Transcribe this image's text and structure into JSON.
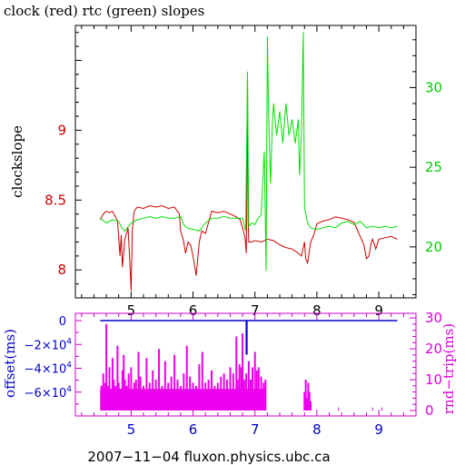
{
  "chart_data": [
    {
      "type": "line",
      "title": "clock (red) rtc (green) slopes",
      "ylabel": "clockslope",
      "x_ticks": [
        5,
        6,
        7,
        8,
        9
      ],
      "xlim": [
        4.1,
        9.6
      ],
      "ylim": [
        7.8,
        9.75
      ],
      "y_ticks": [
        8,
        8.5,
        9
      ],
      "y_right_ticks": [
        20,
        25,
        30
      ],
      "y_right_lim": [
        16.8,
        33.9
      ],
      "colors": {
        "clock": "#cc0000",
        "rtc": "#00e000",
        "axis": "#000000"
      },
      "series": [
        {
          "name": "clock",
          "axis": "left",
          "x": [
            4.5,
            4.55,
            4.6,
            4.65,
            4.7,
            4.78,
            4.82,
            4.84,
            4.86,
            4.9,
            4.95,
            4.98,
            5.0,
            5.02,
            5.05,
            5.1,
            5.2,
            5.3,
            5.4,
            5.5,
            5.6,
            5.7,
            5.78,
            5.8,
            5.84,
            5.88,
            5.92,
            5.96,
            6.0,
            6.05,
            6.1,
            6.14,
            6.2,
            6.3,
            6.4,
            6.5,
            6.6,
            6.7,
            6.76,
            6.8,
            6.84,
            6.86,
            6.88,
            6.89,
            6.9,
            6.95,
            7.0,
            7.1,
            7.2,
            7.3,
            7.4,
            7.5,
            7.6,
            7.7,
            7.75,
            7.8,
            7.82,
            7.85,
            7.9,
            7.95,
            8.0,
            8.1,
            8.2,
            8.3,
            8.4,
            8.5,
            8.6,
            8.7,
            8.76,
            8.8,
            8.84,
            8.88,
            8.9,
            8.95,
            9.0,
            9.1,
            9.2,
            9.3
          ],
          "values": [
            8.36,
            8.4,
            8.42,
            8.41,
            8.42,
            8.35,
            8.1,
            8.25,
            8.02,
            8.22,
            8.3,
            8.05,
            7.85,
            8.28,
            8.42,
            8.45,
            8.44,
            8.46,
            8.45,
            8.46,
            8.44,
            8.45,
            8.4,
            8.28,
            8.22,
            8.12,
            8.2,
            8.18,
            8.1,
            7.96,
            8.2,
            8.28,
            8.26,
            8.42,
            8.41,
            8.42,
            8.4,
            8.38,
            8.36,
            8.3,
            8.23,
            8.12,
            9.38,
            8.35,
            8.2,
            8.2,
            8.21,
            8.2,
            8.22,
            8.21,
            8.18,
            8.16,
            8.15,
            8.12,
            8.1,
            8.2,
            8.08,
            8.05,
            8.2,
            8.25,
            8.33,
            8.35,
            8.36,
            8.38,
            8.37,
            8.36,
            8.34,
            8.24,
            8.18,
            8.08,
            8.1,
            8.2,
            8.22,
            8.15,
            8.22,
            8.23,
            8.24,
            8.22
          ]
        },
        {
          "name": "rtc",
          "axis": "right",
          "x": [
            4.5,
            4.6,
            4.7,
            4.8,
            4.85,
            4.9,
            5.0,
            5.1,
            5.2,
            5.3,
            5.4,
            5.5,
            5.6,
            5.7,
            5.8,
            5.85,
            5.9,
            6.0,
            6.1,
            6.2,
            6.3,
            6.4,
            6.5,
            6.6,
            6.7,
            6.8,
            6.85,
            6.88,
            6.9,
            6.95,
            7.0,
            7.05,
            7.1,
            7.15,
            7.18,
            7.2,
            7.22,
            7.25,
            7.28,
            7.3,
            7.35,
            7.4,
            7.45,
            7.5,
            7.55,
            7.6,
            7.65,
            7.7,
            7.72,
            7.75,
            7.78,
            7.8,
            7.85,
            7.9,
            8.0,
            8.1,
            8.2,
            8.3,
            8.4,
            8.5,
            8.6,
            8.7,
            8.8,
            8.9,
            9.0,
            9.1,
            9.2,
            9.3
          ],
          "values": [
            21.8,
            21.5,
            21.7,
            21.6,
            21.2,
            21.0,
            21.5,
            21.7,
            21.8,
            21.9,
            21.8,
            21.9,
            21.8,
            21.8,
            21.9,
            21.4,
            21.2,
            21.1,
            21.0,
            21.5,
            21.8,
            21.8,
            21.9,
            21.8,
            21.8,
            21.8,
            21.0,
            31.0,
            21.3,
            21.5,
            21.4,
            21.8,
            22.0,
            26.0,
            18.5,
            33.2,
            28.5,
            24.0,
            27.5,
            29.0,
            27.0,
            28.5,
            26.5,
            29.0,
            27.0,
            28.0,
            26.5,
            28.0,
            24.5,
            27.0,
            33.5,
            22.5,
            21.5,
            21.2,
            21.1,
            21.2,
            21.3,
            21.2,
            21.5,
            21.6,
            21.4,
            21.6,
            21.2,
            21.3,
            21.2,
            21.3,
            21.2,
            21.3
          ]
        }
      ]
    },
    {
      "type": "line",
      "ylabel": "offset(ms)",
      "y2label": "rnd−trip(ms)",
      "xlabel": "2007−11−04 fluxon.physics.ubc.ca",
      "x_ticks": [
        5,
        6,
        7,
        8,
        9
      ],
      "xlim": [
        4.1,
        9.6
      ],
      "ylim": [
        -80000,
        0
      ],
      "y_ticks": [
        {
          "value": 0,
          "label": "0"
        },
        {
          "value": -20000,
          "label": "−2×10",
          "exp": "4"
        },
        {
          "value": -40000,
          "label": "−4×10",
          "exp": "4"
        },
        {
          "value": -60000,
          "label": "−6×10",
          "exp": "4"
        }
      ],
      "y_right_ticks": [
        0,
        10,
        20,
        30
      ],
      "y_right_lim": [
        0,
        31.5
      ],
      "colors": {
        "offset": "#0000cc",
        "roundtrip": "#ee00ee",
        "axis": "#cc00cc"
      },
      "series": [
        {
          "name": "offset",
          "axis": "left",
          "x": [
            4.5,
            6.85,
            6.86,
            6.86,
            6.87,
            6.87,
            6.88,
            9.3
          ],
          "values": [
            0,
            0,
            0,
            -28000,
            -28000,
            0,
            0,
            0
          ]
        },
        {
          "name": "rnd-trip",
          "axis": "right",
          "style": "bars",
          "x": [
            4.52,
            4.55,
            4.58,
            4.6,
            4.62,
            4.65,
            4.68,
            4.7,
            4.72,
            4.75,
            4.78,
            4.8,
            4.83,
            4.86,
            4.88,
            4.9,
            4.93,
            4.96,
            5.0,
            5.05,
            5.08,
            5.12,
            5.15,
            5.2,
            5.25,
            5.3,
            5.35,
            5.4,
            5.45,
            5.5,
            5.55,
            5.6,
            5.65,
            5.7,
            5.75,
            5.8,
            5.85,
            5.9,
            5.95,
            6.0,
            6.05,
            6.1,
            6.15,
            6.2,
            6.25,
            6.3,
            6.35,
            6.4,
            6.45,
            6.5,
            6.55,
            6.6,
            6.65,
            6.7,
            6.72,
            6.75,
            6.78,
            6.8,
            6.83,
            6.86,
            6.9,
            6.93,
            6.96,
            7.0,
            7.03,
            7.06,
            7.1,
            7.14,
            7.17,
            7.8,
            7.82,
            7.84,
            7.86,
            7.88,
            7.9
          ],
          "values": [
            8,
            12,
            9,
            28,
            8,
            14,
            7,
            17,
            10,
            8,
            21,
            9,
            7,
            13,
            18,
            10,
            8,
            12,
            14,
            9,
            10,
            19,
            11,
            8,
            17,
            9,
            13,
            10,
            20,
            8,
            16,
            9,
            11,
            18,
            10,
            8,
            12,
            21,
            11,
            9,
            8,
            15,
            19,
            9,
            10,
            13,
            8,
            9,
            11,
            12,
            10,
            14,
            12,
            24,
            10,
            15,
            14,
            25,
            10,
            12,
            16,
            10,
            14,
            19,
            13,
            14,
            11,
            9,
            10,
            6,
            10,
            4,
            9,
            6,
            3
          ]
        }
      ]
    }
  ]
}
